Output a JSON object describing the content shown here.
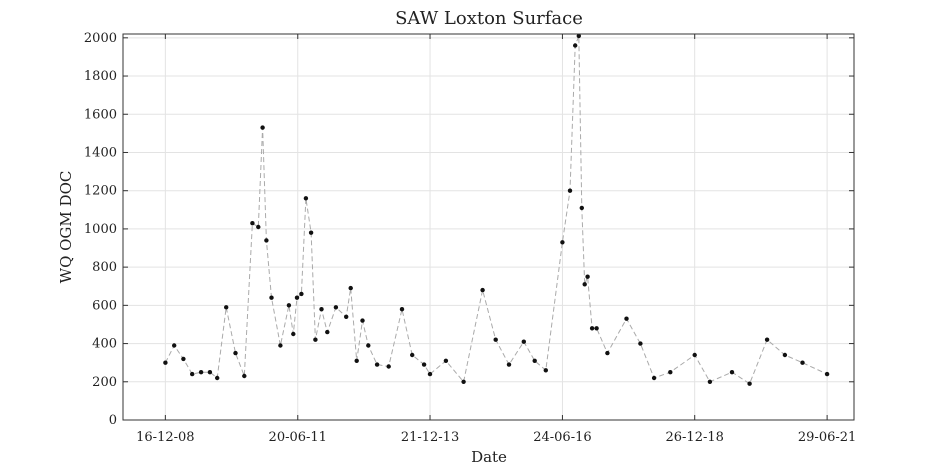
{
  "chart_data": {
    "type": "line",
    "title": "SAW Loxton Surface",
    "xlabel": "Date",
    "ylabel": "WQ OGM DOC",
    "x_ticks": [
      "16-12-08",
      "20-06-11",
      "21-12-13",
      "24-06-16",
      "26-12-18",
      "29-06-21"
    ],
    "x_range": [
      "2008-02-27",
      "2022-01-01"
    ],
    "y_ticks": [
      "0",
      "200",
      "400",
      "600",
      "800",
      "1000",
      "1200",
      "1400",
      "1600",
      "1800",
      "2000"
    ],
    "ylim": [
      0,
      2020
    ],
    "grid": true,
    "legend": "none",
    "line_style": "dashed",
    "line_color": "#aaaaaa",
    "marker_color": "#111111",
    "series": [
      {
        "x": [
          "2008-12-16",
          "2009-02-15",
          "2009-04-20",
          "2009-06-20",
          "2009-08-20",
          "2009-10-20",
          "2009-12-10",
          "2010-02-10",
          "2010-04-15",
          "2010-06-15",
          "2010-08-10",
          "2010-09-20",
          "2010-10-20",
          "2010-11-15",
          "2010-12-20",
          "2011-02-20",
          "2011-04-20",
          "2011-05-20",
          "2011-06-15",
          "2011-07-15",
          "2011-08-15",
          "2011-09-20",
          "2011-10-20",
          "2011-12-01",
          "2012-01-10",
          "2012-03-10",
          "2012-05-20",
          "2012-06-20",
          "2012-08-01",
          "2012-09-10",
          "2012-10-20",
          "2012-12-20",
          "2013-03-10",
          "2013-06-10",
          "2013-08-20",
          "2013-11-10",
          "2013-12-21",
          "2014-04-10",
          "2014-08-10",
          "2014-12-20",
          "2015-03-20",
          "2015-06-20",
          "2015-10-01",
          "2015-12-15",
          "2016-03-01",
          "2016-06-24",
          "2016-08-15",
          "2016-09-20",
          "2016-10-15",
          "2016-11-05",
          "2016-11-25",
          "2016-12-15",
          "2017-01-15",
          "2017-02-15",
          "2017-05-01",
          "2017-09-10",
          "2017-12-15",
          "2018-03-20",
          "2018-07-10",
          "2018-12-26",
          "2019-04-10",
          "2019-09-10",
          "2020-01-10",
          "2020-05-10",
          "2020-09-10",
          "2021-01-10",
          "2021-06-29"
        ],
        "values": [
          300,
          390,
          320,
          240,
          250,
          250,
          220,
          590,
          350,
          230,
          1030,
          1010,
          1530,
          940,
          640,
          390,
          600,
          450,
          640,
          660,
          1160,
          980,
          420,
          580,
          460,
          590,
          540,
          690,
          310,
          520,
          390,
          290,
          280,
          580,
          340,
          290,
          240,
          310,
          200,
          680,
          420,
          290,
          410,
          310,
          260,
          930,
          1200,
          1960,
          2010,
          1110,
          710,
          750,
          480,
          480,
          350,
          530,
          400,
          220,
          250,
          340,
          200,
          250,
          190,
          420,
          340,
          300,
          240
        ]
      }
    ]
  }
}
